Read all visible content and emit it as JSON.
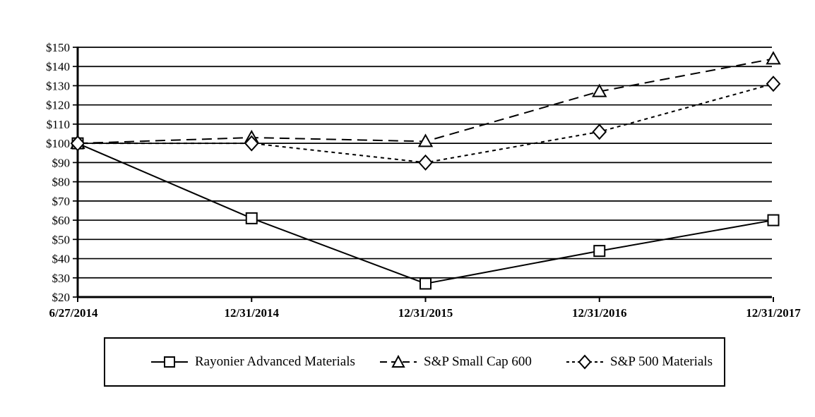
{
  "chart_data": {
    "type": "line",
    "title": "",
    "categories": [
      "6/27/2014",
      "12/31/2014",
      "12/31/2015",
      "12/31/2016",
      "12/31/2017"
    ],
    "series": [
      {
        "name": "Rayonier Advanced Materials",
        "values": [
          100,
          61,
          27,
          44,
          60
        ],
        "marker": "square",
        "line_style": "solid"
      },
      {
        "name": "S&P Small Cap 600",
        "values": [
          100,
          103,
          101,
          127,
          144
        ],
        "marker": "triangle",
        "line_style": "long-dash"
      },
      {
        "name": "S&P 500 Materials",
        "values": [
          100,
          100,
          90,
          106,
          131
        ],
        "marker": "diamond",
        "line_style": "short-dash"
      }
    ],
    "y_axis": {
      "min": 20,
      "max": 150,
      "step": 10,
      "tick_prefix": "$",
      "tick_labels": [
        "$20",
        "$30",
        "$40",
        "$50",
        "$60",
        "$70",
        "$80",
        "$90",
        "$100",
        "$110",
        "$120",
        "$130",
        "$140",
        "$150"
      ]
    },
    "x_axis": {
      "tick_labels": [
        "6/27/2014",
        "12/31/2014",
        "12/31/2015",
        "12/31/2016",
        "12/31/2017"
      ]
    },
    "ylim": [
      20,
      150
    ],
    "grid": "horizontal",
    "legend_position": "bottom",
    "colors": {
      "line": "#000000",
      "marker_fill": "#ffffff",
      "background": "#ffffff",
      "text": "#000000"
    }
  }
}
